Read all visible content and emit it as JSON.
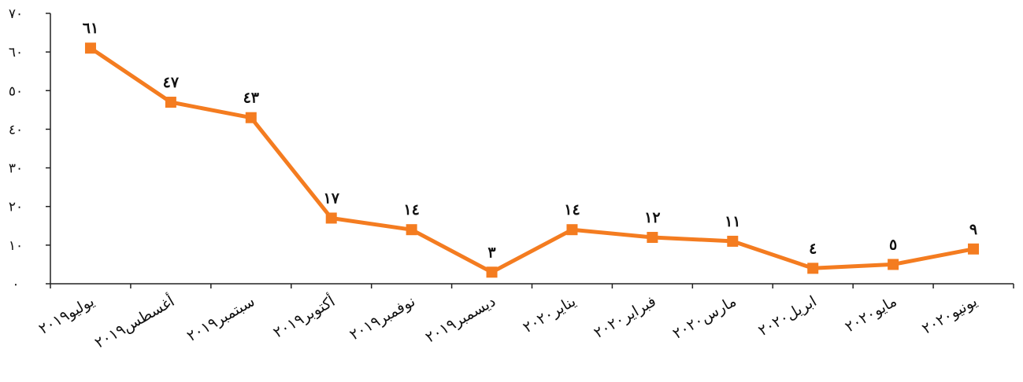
{
  "chart_data": {
    "type": "line",
    "title": "",
    "xlabel": "",
    "ylabel": "",
    "ylim": [
      0,
      70
    ],
    "yticks": [
      0,
      10,
      20,
      30,
      40,
      50,
      60,
      70
    ],
    "ytick_labels": [
      "٠",
      "١٠",
      "٢٠",
      "٣٠",
      "٤٠",
      "٥٠",
      "٦٠",
      "٧٠"
    ],
    "categories": [
      "يوليو٢٠١٩",
      "أغسطس٢٠١٩",
      "سبتمبر٢٠١٩",
      "أكتوبر٢٠١٩",
      "نوفمبر٢٠١٩",
      "ديسمبر٢٠١٩",
      "يناير٢٠٢٠",
      "فبراير٢٠٢٠",
      "مارس٢٠٢٠",
      "ابريل٢٠٢٠",
      "مايو٢٠٢٠",
      "يونيو٢٠٢٠"
    ],
    "values": [
      61,
      47,
      43,
      17,
      14,
      3,
      14,
      12,
      11,
      4,
      5,
      9
    ],
    "data_labels": [
      "٦١",
      "٤٧",
      "٤٣",
      "١٧",
      "١٤",
      "٣",
      "١٤",
      "١٢",
      "١١",
      "٤",
      "٥",
      "٩"
    ],
    "series_color": "#F47C20",
    "grid": false,
    "legend": "none"
  }
}
